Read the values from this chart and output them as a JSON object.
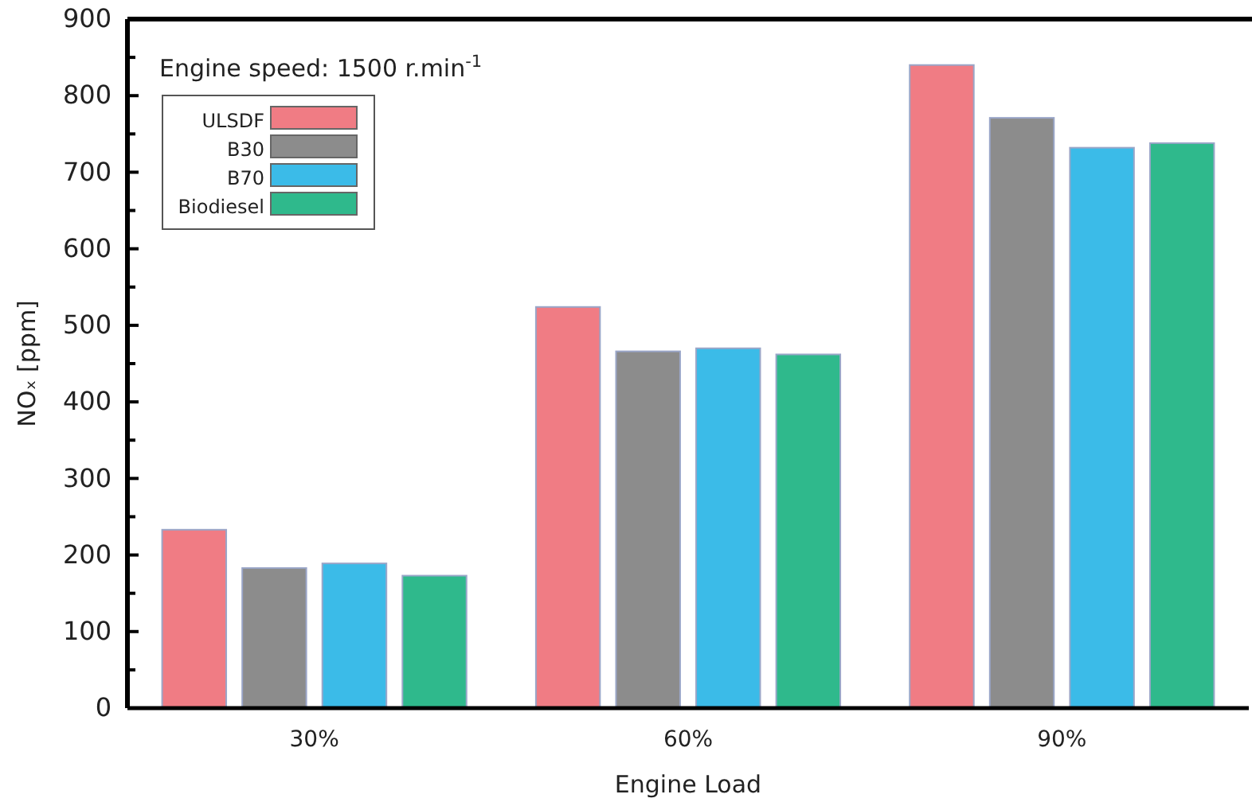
{
  "chart_data": {
    "type": "bar",
    "xlabel": "Engine Load",
    "ylabel": "NOₓ [ppm]",
    "categories": [
      "30%",
      "60%",
      "90%"
    ],
    "series": [
      {
        "name": "ULSDF",
        "color": "#f07c84",
        "values": [
          233,
          524,
          840
        ]
      },
      {
        "name": "B30",
        "color": "#8c8c8c",
        "values": [
          183,
          466,
          771
        ]
      },
      {
        "name": "B70",
        "color": "#3bbbe8",
        "values": [
          189,
          470,
          732
        ]
      },
      {
        "name": "Biodiesel",
        "color": "#2fb98c",
        "values": [
          173,
          462,
          738
        ]
      }
    ],
    "annotations": [
      "Engine speed: 1500 r.min$^{-1}$"
    ],
    "ylim": [
      0,
      900
    ],
    "yticks": [
      0,
      {
        "value": 50,
        "label": null
      },
      100,
      {
        "value": 150,
        "label": null
      },
      200,
      {
        "value": 250,
        "label": null
      },
      300,
      {
        "value": 350,
        "label": null
      },
      400,
      {
        "value": 450,
        "label": null
      },
      500,
      {
        "value": 550,
        "label": null
      },
      600,
      {
        "value": 650,
        "label": null
      },
      700,
      {
        "value": 750,
        "label": null
      },
      800,
      {
        "value": 850,
        "label": null
      },
      900
    ],
    "legend": "top left",
    "grid": false
  }
}
